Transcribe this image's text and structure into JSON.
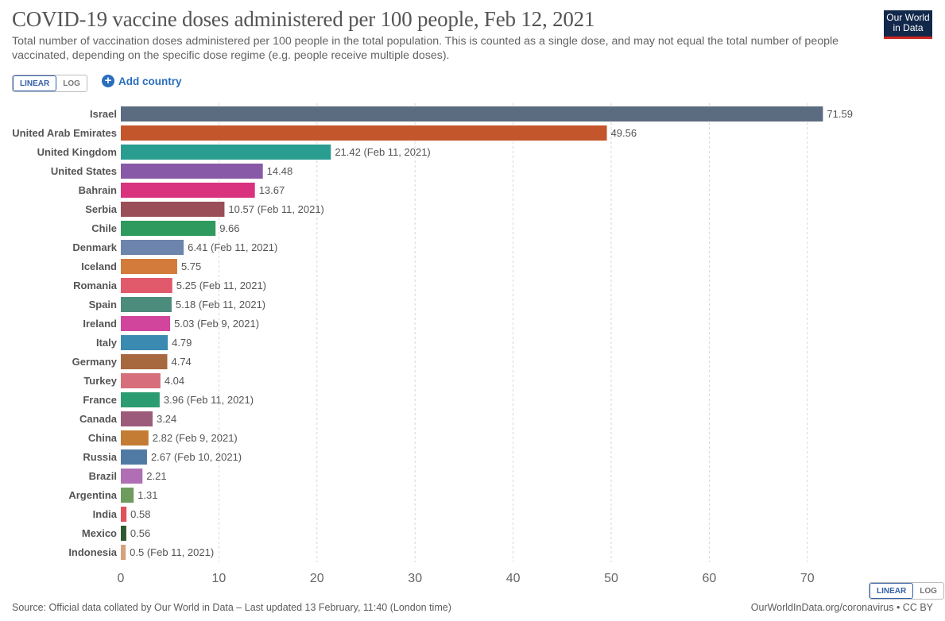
{
  "header": {
    "title": "COVID-19 vaccine doses administered per 100 people, Feb 12, 2021",
    "subtitle": "Total number of vaccination doses administered per 100 people in the total population. This is counted as a single dose, and may not equal the total number of people vaccinated, depending on the specific dose regime (e.g. people receive multiple doses).",
    "logo_line1": "Our World",
    "logo_line2": "in Data"
  },
  "controls": {
    "linear_label": "LINEAR",
    "log_label": "LOG",
    "add_country_label": "Add country",
    "selected_scale": "LINEAR"
  },
  "footer": {
    "source": "Source: Official data collated by Our World in Data – Last updated 13 February, 11:40 (London time)",
    "url": "OurWorldInData.org/coronavirus • CC BY"
  },
  "chart_data": {
    "type": "bar",
    "orientation": "horizontal",
    "categories": [
      "Israel",
      "United Arab Emirates",
      "United Kingdom",
      "United States",
      "Bahrain",
      "Serbia",
      "Chile",
      "Denmark",
      "Iceland",
      "Romania",
      "Spain",
      "Ireland",
      "Italy",
      "Germany",
      "Turkey",
      "France",
      "Canada",
      "China",
      "Russia",
      "Brazil",
      "Argentina",
      "India",
      "Mexico",
      "Indonesia"
    ],
    "values": [
      71.59,
      49.56,
      21.42,
      14.48,
      13.67,
      10.57,
      9.66,
      6.41,
      5.75,
      5.25,
      5.18,
      5.03,
      4.79,
      4.74,
      4.04,
      3.96,
      3.24,
      2.82,
      2.67,
      2.21,
      1.31,
      0.58,
      0.56,
      0.5
    ],
    "labels": [
      "71.59",
      "49.56",
      "21.42 (Feb 11, 2021)",
      "14.48",
      "13.67",
      "10.57 (Feb 11, 2021)",
      "9.66",
      "6.41 (Feb 11, 2021)",
      "5.75",
      "5.25 (Feb 11, 2021)",
      "5.18 (Feb 11, 2021)",
      "5.03 (Feb 9, 2021)",
      "4.79",
      "4.74",
      "4.04",
      "3.96 (Feb 11, 2021)",
      "3.24",
      "2.82 (Feb 9, 2021)",
      "2.67 (Feb 10, 2021)",
      "2.21",
      "1.31",
      "0.58",
      "0.56",
      "0.5 (Feb 11, 2021)"
    ],
    "colors": [
      "#5b6b80",
      "#c4562b",
      "#2a9d91",
      "#8859a7",
      "#d9337f",
      "#9a4e57",
      "#2f9a5e",
      "#6d85ad",
      "#d27b3b",
      "#e05a6c",
      "#4b8c7c",
      "#d2459d",
      "#3a8ab2",
      "#a8683f",
      "#d66f7b",
      "#2b9c72",
      "#9c5b7b",
      "#c47b33",
      "#507aa3",
      "#b06fb4",
      "#6e9c5e",
      "#e1515a",
      "#2f5a2f",
      "#d5a27e"
    ],
    "xticks": [
      0,
      10,
      20,
      30,
      40,
      50,
      60,
      70
    ],
    "xlim": [
      0,
      75
    ],
    "grid": true
  }
}
